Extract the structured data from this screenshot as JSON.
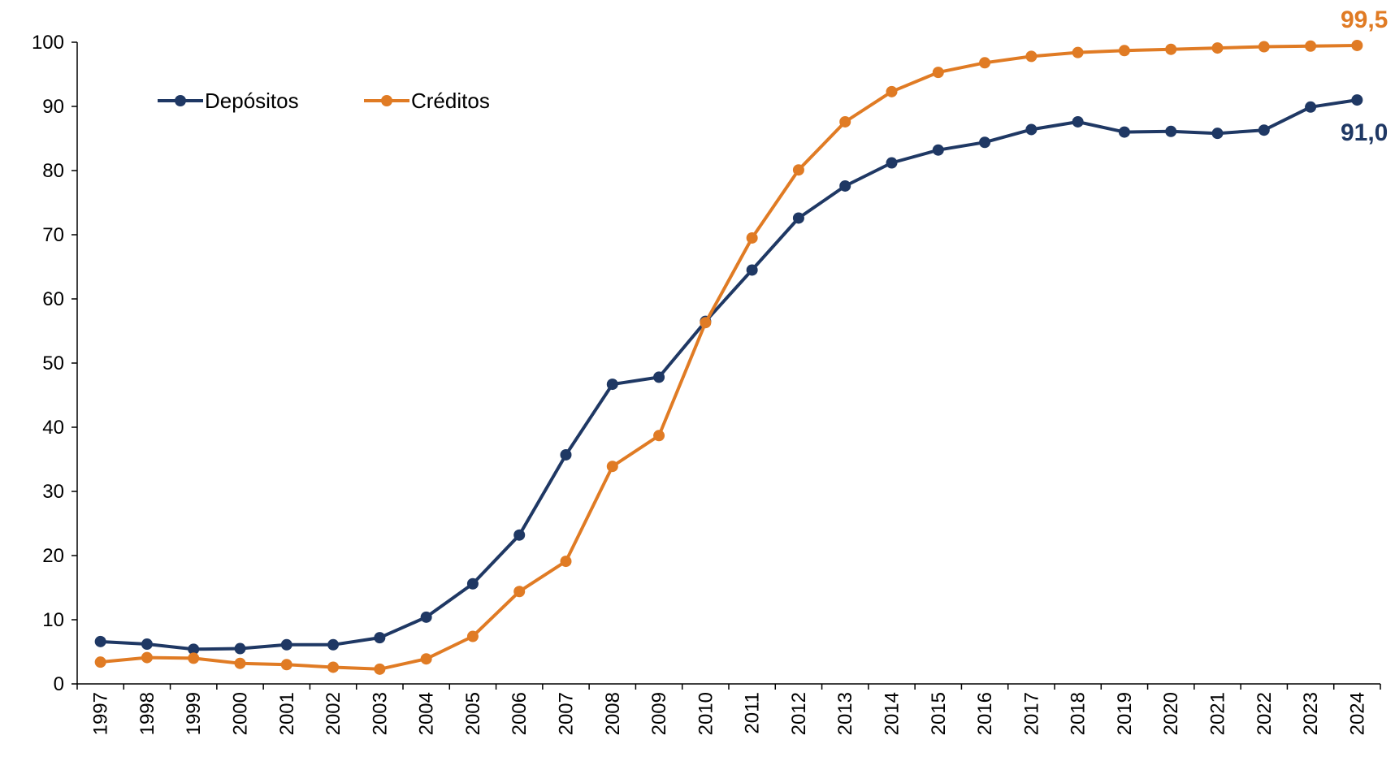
{
  "chart_data": {
    "type": "line",
    "title": "",
    "xlabel": "",
    "ylabel": "",
    "x": [
      "1997",
      "1998",
      "1999",
      "2000",
      "2001",
      "2002",
      "2003",
      "2004",
      "2005",
      "2006",
      "2007",
      "2008",
      "2009",
      "2010",
      "2011",
      "2012",
      "2013",
      "2014",
      "2015",
      "2016",
      "2017",
      "2018",
      "2019",
      "2020",
      "2021",
      "2022",
      "2023",
      "2024"
    ],
    "ylim": [
      0,
      100
    ],
    "yticks": [
      0,
      10,
      20,
      30,
      40,
      50,
      60,
      70,
      80,
      90,
      100
    ],
    "grid": false,
    "legend_position": "top-left",
    "series": [
      {
        "name": "Depósitos",
        "color": "#1F3864",
        "values": [
          6.6,
          6.2,
          5.4,
          5.5,
          6.1,
          6.1,
          7.2,
          10.4,
          15.6,
          23.2,
          35.7,
          46.7,
          47.8,
          56.5,
          64.5,
          72.6,
          77.6,
          81.2,
          83.2,
          84.4,
          86.4,
          87.6,
          86.0,
          86.1,
          85.8,
          86.3,
          89.9,
          91.0
        ]
      },
      {
        "name": "Créditos",
        "color": "#E07B24",
        "values": [
          3.4,
          4.1,
          4.0,
          3.2,
          3.0,
          2.6,
          2.3,
          3.9,
          7.4,
          14.4,
          19.1,
          33.9,
          38.7,
          56.3,
          69.5,
          80.1,
          87.6,
          92.3,
          95.3,
          96.8,
          97.8,
          98.4,
          98.7,
          98.9,
          99.1,
          99.3,
          99.4,
          99.5
        ]
      }
    ],
    "annotations": [
      {
        "series": "Créditos",
        "text": "99,5"
      },
      {
        "series": "Depósitos",
        "text": "91,0"
      }
    ]
  }
}
